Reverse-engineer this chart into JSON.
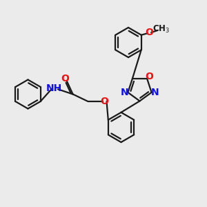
{
  "bg_color": "#ebebeb",
  "bond_color": "#1a1a1a",
  "N_color": "#1010ee",
  "O_color": "#ee1010",
  "bond_width": 1.6,
  "font_size_atom": 10,
  "xlim": [
    0,
    10
  ],
  "ylim": [
    0,
    10
  ]
}
